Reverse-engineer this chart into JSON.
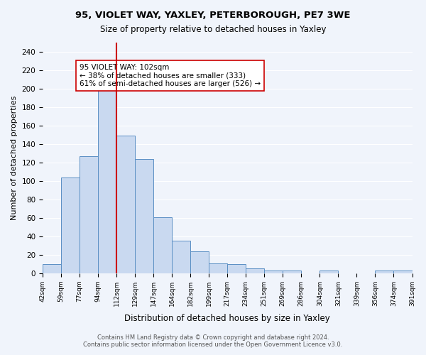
{
  "title": "95, VIOLET WAY, YAXLEY, PETERBOROUGH, PE7 3WE",
  "subtitle": "Size of property relative to detached houses in Yaxley",
  "xlabel": "Distribution of detached houses by size in Yaxley",
  "ylabel": "Number of detached properties",
  "bin_labels": [
    "42sqm",
    "59sqm",
    "77sqm",
    "94sqm",
    "112sqm",
    "129sqm",
    "147sqm",
    "164sqm",
    "182sqm",
    "199sqm",
    "217sqm",
    "234sqm",
    "251sqm",
    "269sqm",
    "286sqm",
    "304sqm",
    "321sqm",
    "339sqm",
    "356sqm",
    "374sqm",
    "391sqm"
  ],
  "bar_values": [
    10,
    104,
    127,
    200,
    149,
    124,
    61,
    35,
    24,
    11,
    10,
    5,
    3,
    3,
    0,
    3,
    0,
    0,
    3,
    3
  ],
  "bar_color": "#c9d9f0",
  "bar_edge_color": "#5a8fc4",
  "vline_x_index": 3.5,
  "vline_color": "#cc0000",
  "annotation_text": "95 VIOLET WAY: 102sqm\n← 38% of detached houses are smaller (333)\n61% of semi-detached houses are larger (526) →",
  "annotation_box_color": "#ffffff",
  "annotation_box_edge": "#cc0000",
  "ylim": [
    0,
    250
  ],
  "yticks": [
    0,
    20,
    40,
    60,
    80,
    100,
    120,
    140,
    160,
    180,
    200,
    220,
    240
  ],
  "footer_line1": "Contains HM Land Registry data © Crown copyright and database right 2024.",
  "footer_line2": "Contains public sector information licensed under the Open Government Licence v3.0.",
  "background_color": "#f0f4fb"
}
